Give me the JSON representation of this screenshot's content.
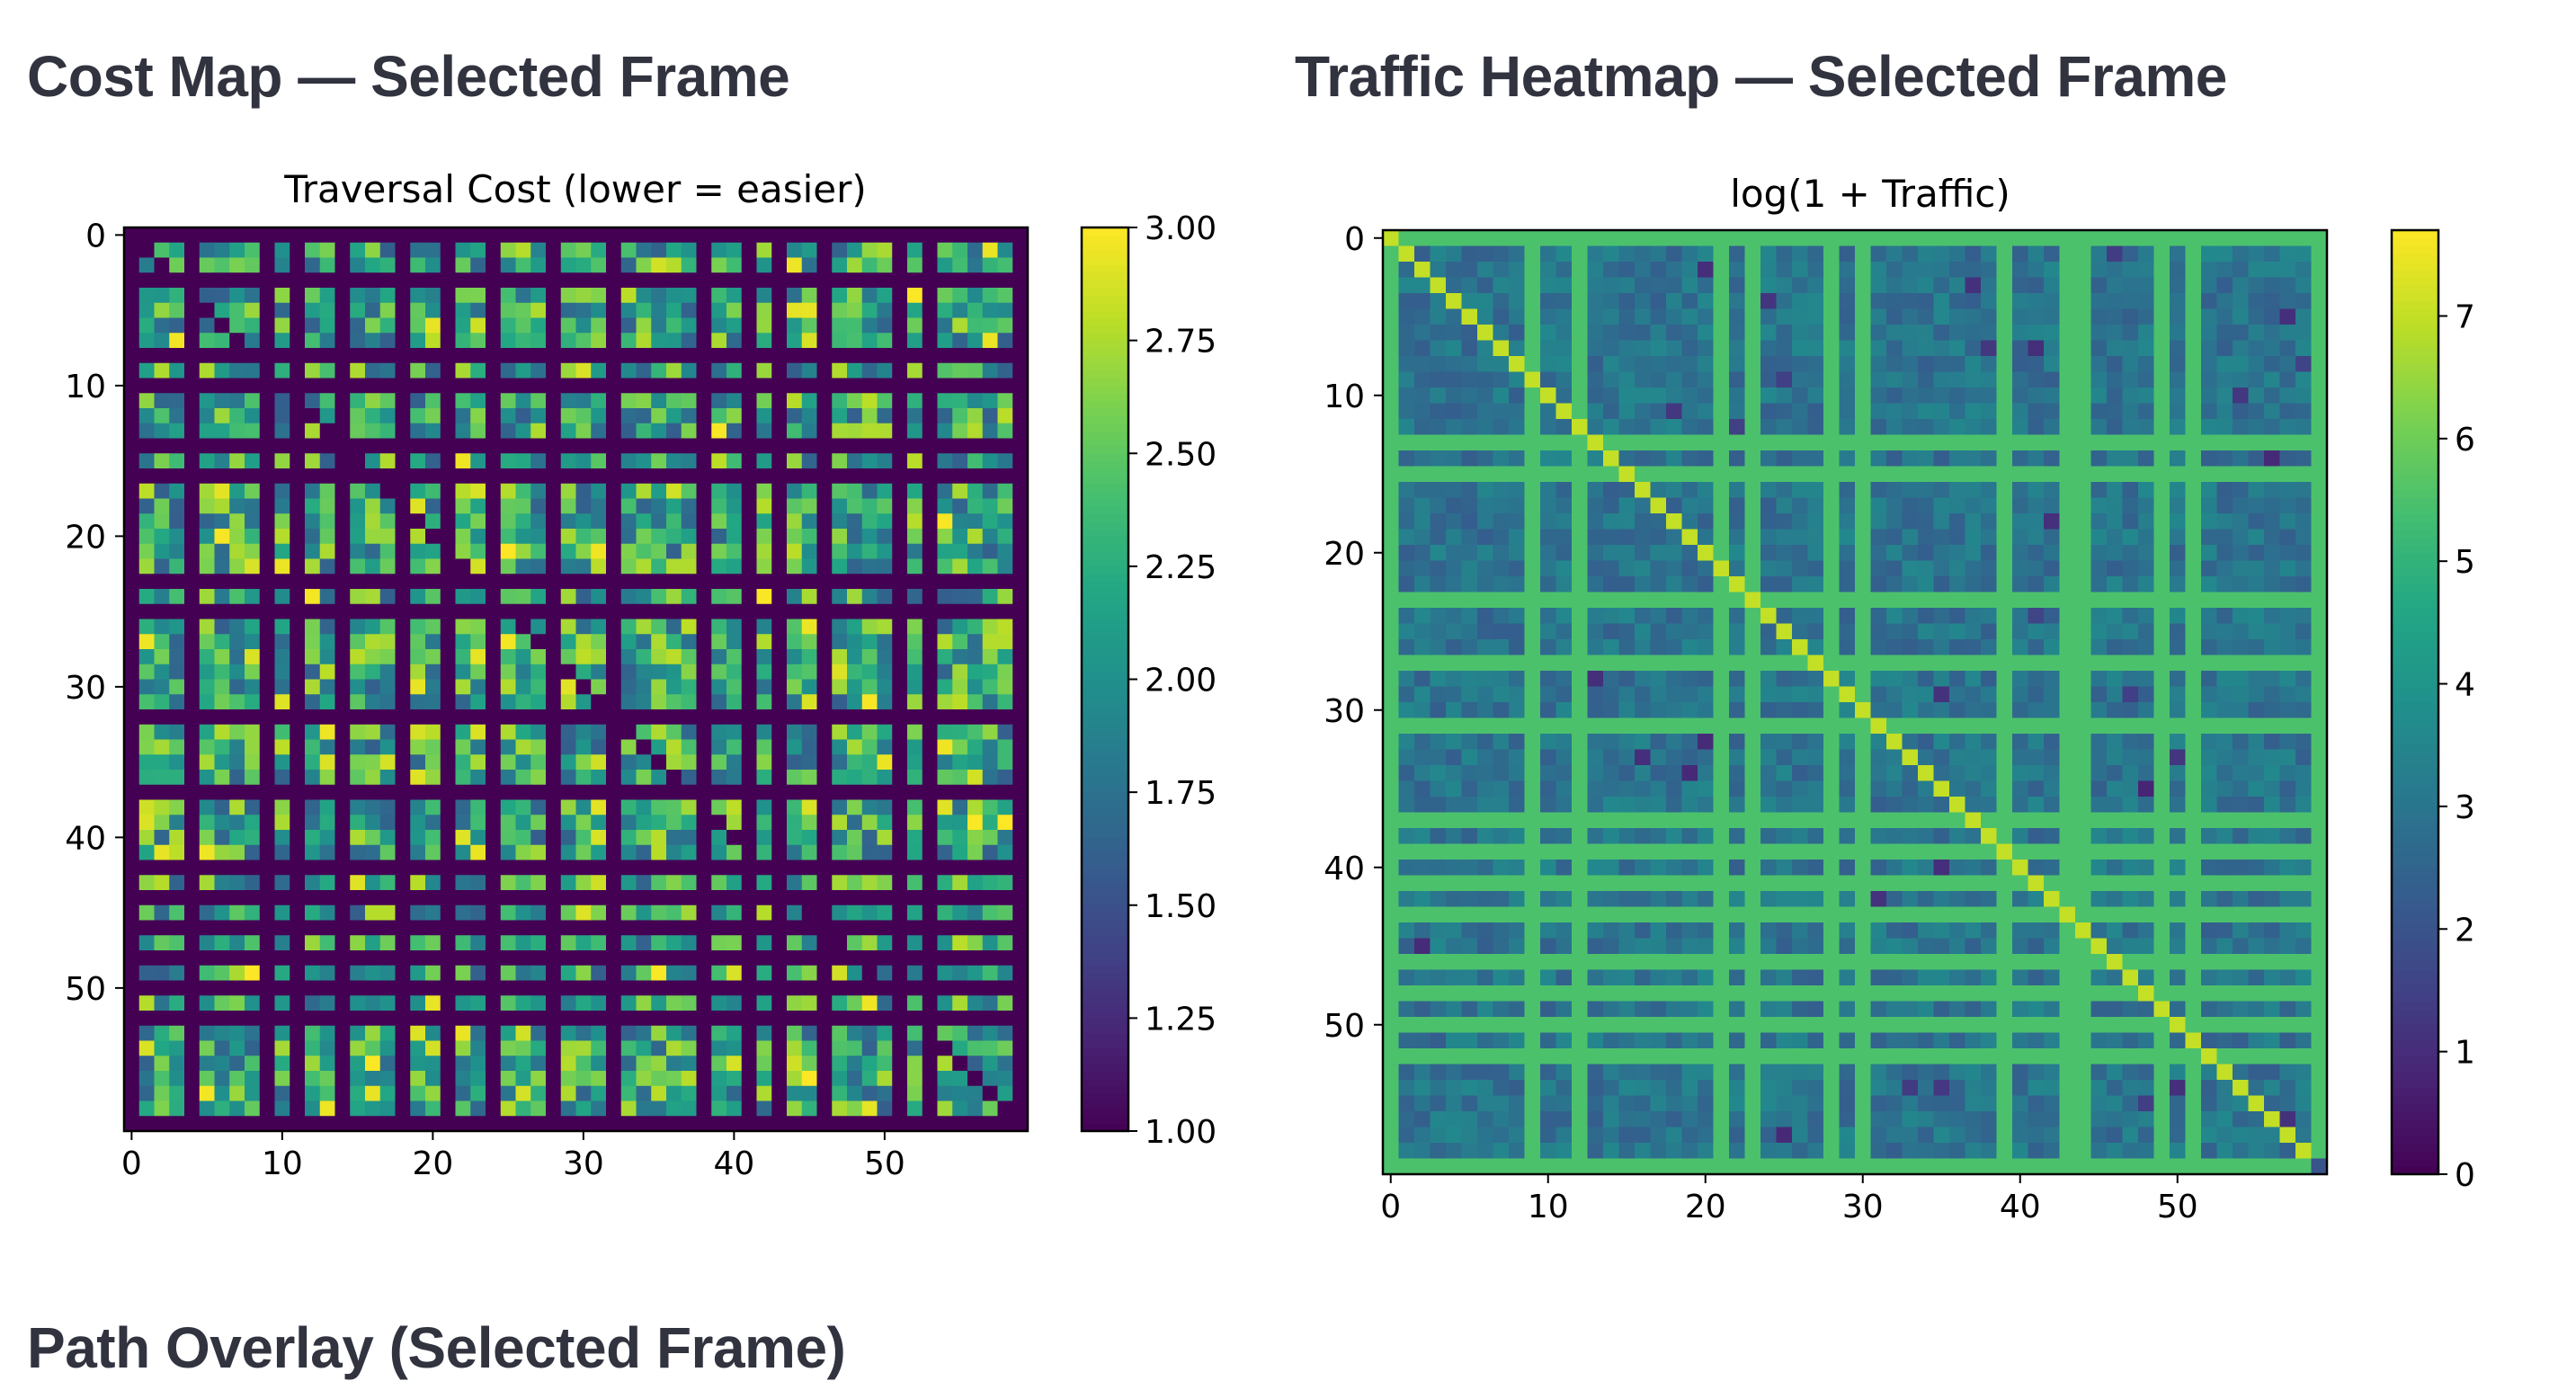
{
  "sections": {
    "cost_title": "Cost Map — Selected Frame",
    "traffic_title": "Traffic Heatmap — Selected Frame",
    "path_title": "Path Overlay (Selected Frame)"
  },
  "colormap": "viridis",
  "chart_data": [
    {
      "type": "heatmap",
      "title": "Traversal Cost (lower = easier)",
      "grid_size": [
        60,
        60
      ],
      "x_ticks": [
        0,
        10,
        20,
        30,
        40,
        50
      ],
      "y_ticks": [
        0,
        10,
        20,
        30,
        40,
        50
      ],
      "colorbar": {
        "min": 1.0,
        "max": 3.0,
        "ticks": [
          "1.00",
          "1.25",
          "1.50",
          "1.75",
          "2.00",
          "2.25",
          "2.50",
          "2.75",
          "3.00"
        ]
      },
      "road_value": 1.0,
      "block_value_range": [
        1.6,
        2.8
      ],
      "road_rows": [
        0,
        3,
        8,
        10,
        14,
        16,
        23,
        25,
        32,
        37,
        42,
        44,
        46,
        48,
        50,
        52,
        59
      ],
      "road_cols": [
        0,
        4,
        9,
        11,
        14,
        18,
        21,
        24,
        28,
        32,
        38,
        41,
        43,
        46,
        51,
        53,
        59
      ],
      "diagonal_road": true
    },
    {
      "type": "heatmap",
      "title": "log(1 + Traffic)",
      "grid_size": [
        60,
        60
      ],
      "x_ticks": [
        0,
        10,
        20,
        30,
        40,
        50
      ],
      "y_ticks": [
        0,
        10,
        20,
        30,
        40,
        50
      ],
      "colorbar": {
        "min": 0,
        "max": 7.7,
        "ticks": [
          "0",
          "1",
          "2",
          "3",
          "4",
          "5",
          "6",
          "7"
        ]
      },
      "background_value_range": [
        2.3,
        3.6
      ],
      "border_value": 5.3,
      "route_value": 5.5,
      "diagonal_value": 7.0,
      "route_rows": [
        0,
        13,
        15,
        23,
        27,
        31,
        37,
        39,
        41,
        43,
        46,
        48,
        50,
        52,
        59
      ],
      "route_cols": [
        0,
        9,
        12,
        21,
        23,
        28,
        30,
        39,
        43,
        44,
        49,
        51,
        59
      ],
      "diagonal_route": true
    }
  ]
}
